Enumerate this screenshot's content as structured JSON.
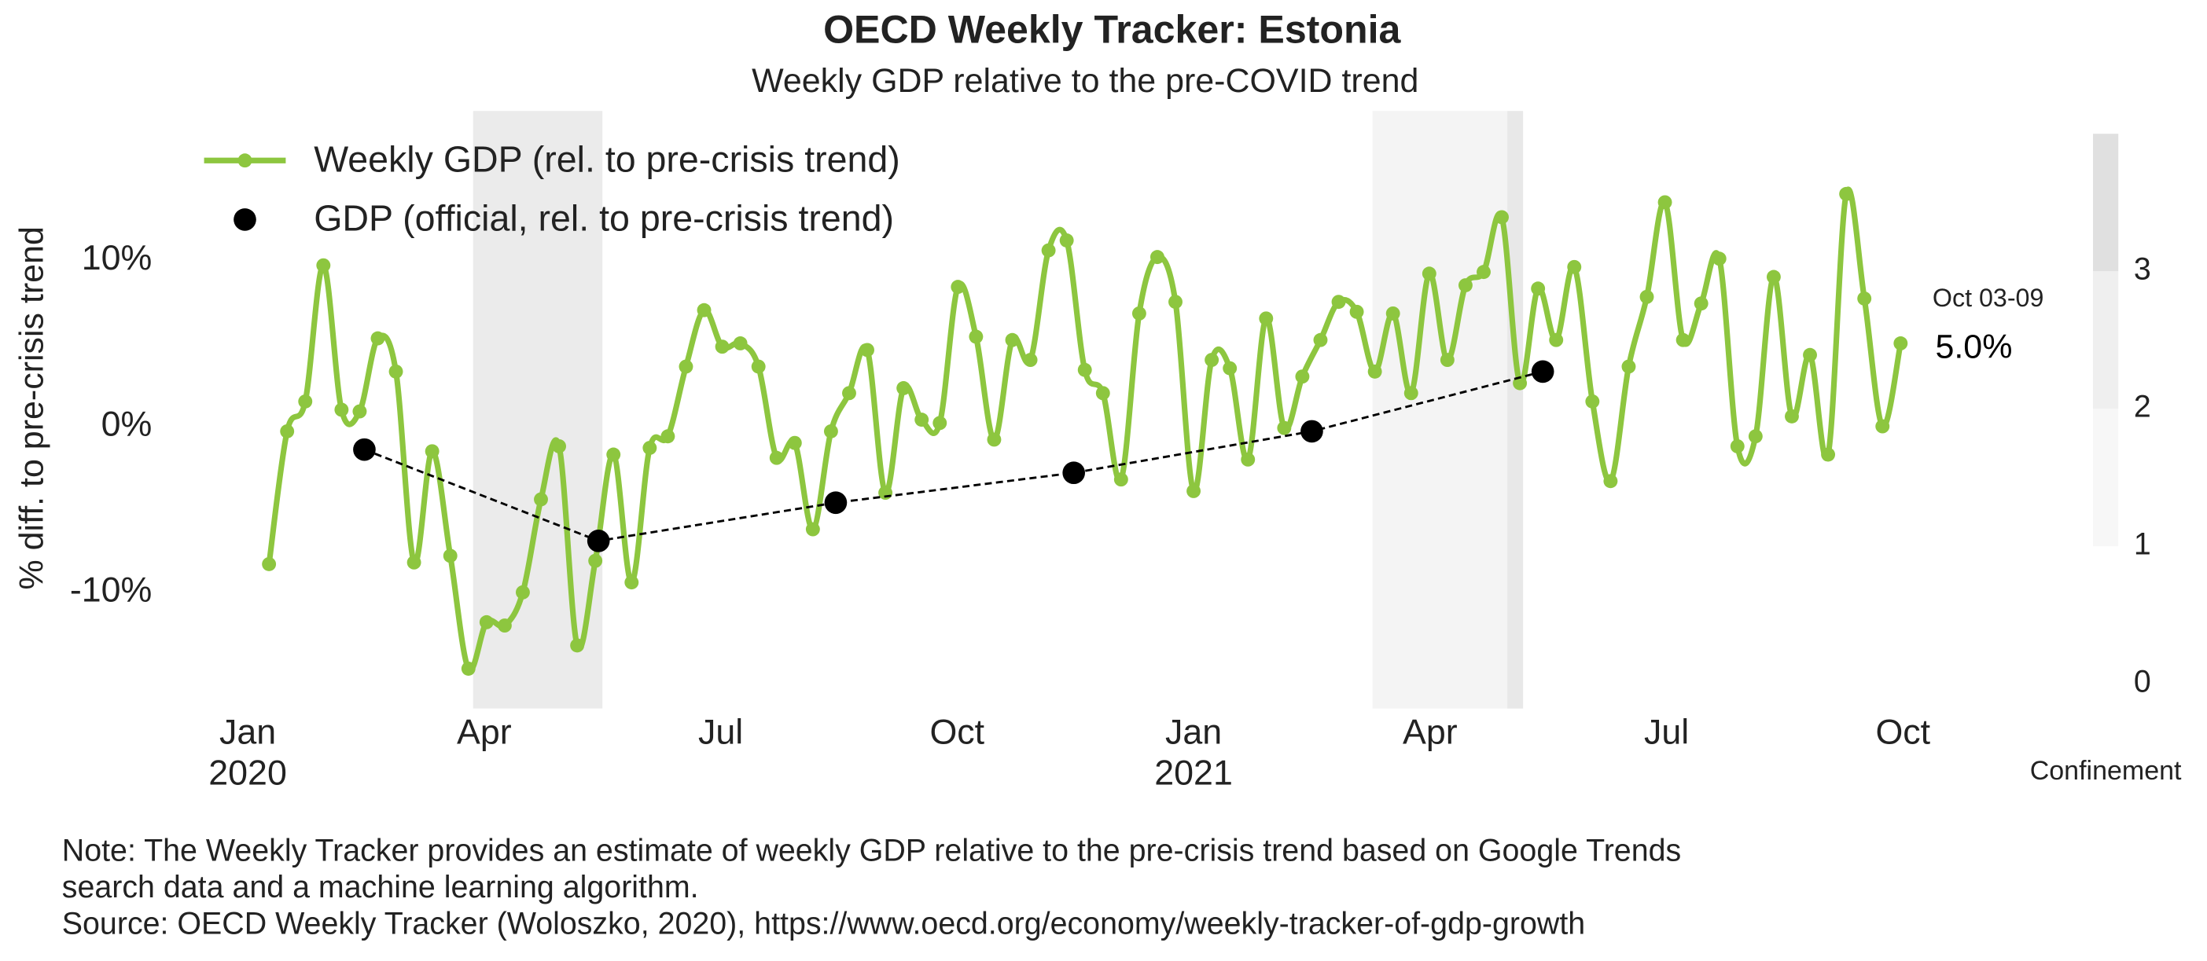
{
  "chart_data": {
    "type": "line",
    "title": "OECD Weekly Tracker: Estonia",
    "subtitle": "Weekly GDP relative to the pre-COVID trend",
    "y_label": "% diff. to pre-crisis trend",
    "xlim": [
      -0.6,
      21.4
    ],
    "ylim": [
      -17,
      19
    ],
    "xticks": [
      {
        "value": 0,
        "label": "Jan 2020"
      },
      {
        "value": 3,
        "label": "Apr"
      },
      {
        "value": 6,
        "label": "Jul"
      },
      {
        "value": 9,
        "label": "Oct"
      },
      {
        "value": 12,
        "label": "Jan 2021"
      },
      {
        "value": 15,
        "label": "Apr"
      },
      {
        "value": 18,
        "label": "Jul"
      },
      {
        "value": 21,
        "label": "Oct"
      }
    ],
    "yticks": [
      {
        "value": -10,
        "label": "-10%"
      },
      {
        "value": 0,
        "label": "0%"
      },
      {
        "value": 10,
        "label": "10%"
      }
    ],
    "x": [
      0.27,
      0.5,
      0.73,
      0.96,
      1.19,
      1.42,
      1.65,
      1.88,
      2.11,
      2.34,
      2.57,
      2.8,
      3.03,
      3.26,
      3.49,
      3.72,
      3.95,
      4.18,
      4.41,
      4.64,
      4.87,
      5.1,
      5.33,
      5.56,
      5.79,
      6.02,
      6.25,
      6.48,
      6.71,
      6.94,
      7.17,
      7.4,
      7.63,
      7.86,
      8.09,
      8.32,
      8.55,
      8.78,
      9.01,
      9.24,
      9.47,
      9.7,
      9.93,
      10.16,
      10.39,
      10.62,
      10.85,
      11.08,
      11.31,
      11.54,
      11.77,
      12.0,
      12.23,
      12.46,
      12.69,
      12.92,
      13.15,
      13.38,
      13.61,
      13.84,
      14.07,
      14.3,
      14.53,
      14.76,
      14.99,
      15.22,
      15.45,
      15.68,
      15.91,
      16.14,
      16.37,
      16.6,
      16.83,
      17.06,
      17.29,
      17.52,
      17.75,
      17.98,
      18.21,
      18.44,
      18.67,
      18.9,
      19.13,
      19.36,
      19.59,
      19.82,
      20.05,
      20.28,
      20.51,
      20.74,
      20.97
    ],
    "series": [
      {
        "name": "Weekly GDP (rel. to pre-crisis trend)",
        "color": "#8dc63f",
        "values": [
          -8.3,
          -0.3,
          1.5,
          9.7,
          1.0,
          0.9,
          5.3,
          3.3,
          -8.2,
          -1.5,
          -7.8,
          -14.6,
          -11.8,
          -12.0,
          -10.0,
          -4.4,
          -1.2,
          -13.2,
          -8.1,
          -1.7,
          -9.4,
          -1.3,
          -0.6,
          3.6,
          7.0,
          4.8,
          5.0,
          3.6,
          -1.9,
          -1.0,
          -6.2,
          -0.3,
          2.0,
          4.6,
          -4.0,
          2.3,
          0.4,
          0.2,
          8.4,
          5.4,
          -0.8,
          5.2,
          4.0,
          10.6,
          11.2,
          3.4,
          2.0,
          -3.2,
          6.8,
          10.2,
          7.5,
          -3.9,
          4.0,
          3.5,
          -2.0,
          6.5,
          -0.1,
          3.0,
          5.2,
          7.5,
          6.9,
          3.3,
          6.8,
          2.0,
          9.2,
          4.0,
          8.5,
          9.3,
          12.6,
          2.6,
          8.3,
          5.2,
          9.6,
          1.5,
          -3.3,
          3.6,
          7.8,
          13.5,
          5.2,
          7.4,
          10.1,
          -1.2,
          -0.6,
          9.0,
          0.6,
          4.3,
          -1.7,
          14.0,
          7.7,
          0.0,
          5.0
        ]
      },
      {
        "name": "GDP (official, rel. to pre-crisis trend)",
        "color": "#000000",
        "x": [
          1.48,
          4.45,
          7.46,
          10.48,
          13.5,
          16.43
        ],
        "values": [
          -1.4,
          -6.9,
          -4.6,
          -2.8,
          -0.3,
          3.3
        ]
      }
    ],
    "annotation": {
      "label": "Oct 03-09",
      "value_label": "5.0%"
    },
    "confinement": {
      "label": "Confinement",
      "lim": [
        0,
        4
      ],
      "ticks": [
        0,
        1,
        2,
        3
      ],
      "segments": [
        {
          "from": 1,
          "to": 2,
          "color": "#f7f7f7"
        },
        {
          "from": 2,
          "to": 3,
          "color": "#efefef"
        },
        {
          "from": 3,
          "to": 4,
          "color": "#e0e0e0"
        }
      ],
      "periods": [
        {
          "start": 2.86,
          "end": 4.5,
          "level": 3,
          "color": "#ebebeb"
        },
        {
          "start": 14.27,
          "end": 15.98,
          "level": 2,
          "color": "#f4f4f4"
        },
        {
          "start": 15.98,
          "end": 16.18,
          "level": 3,
          "color": "#e8e8e8"
        }
      ]
    }
  },
  "notes": [
    "Note: The Weekly Tracker provides an estimate of weekly GDP relative to the pre-crisis trend based on Google Trends",
    "search data and a machine learning algorithm.",
    "Source: OECD Weekly Tracker (Woloszko, 2020), https://www.oecd.org/economy/weekly-tracker-of-gdp-growth"
  ]
}
